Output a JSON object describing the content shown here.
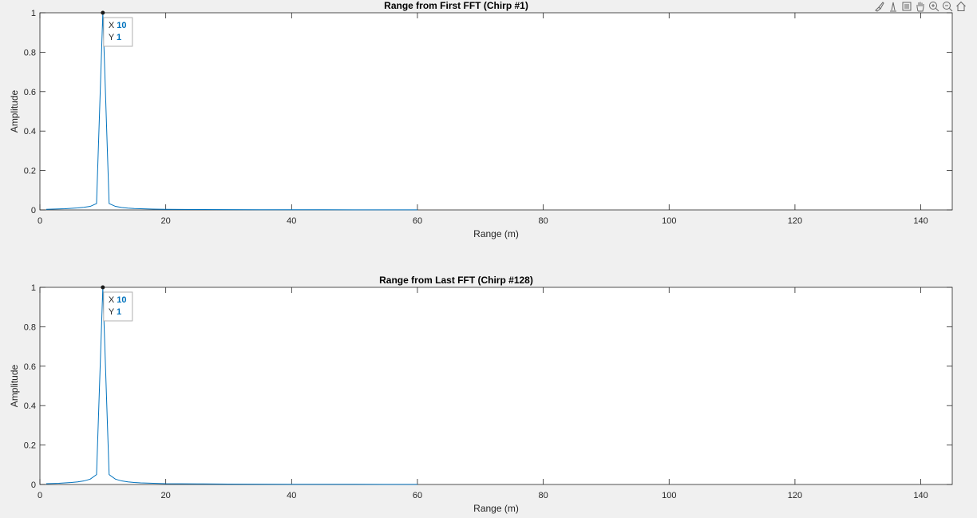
{
  "figure": {
    "toolbar": [
      {
        "name": "brush-icon"
      },
      {
        "name": "datatip-icon"
      },
      {
        "name": "restore-view-icon"
      },
      {
        "name": "pan-hand-icon"
      },
      {
        "name": "zoom-in-icon"
      },
      {
        "name": "zoom-out-icon"
      },
      {
        "name": "home-icon"
      }
    ],
    "colors": {
      "background": "#f0f0f0",
      "axes": "#ffffff",
      "line": "#0072BD",
      "axis_text": "#262626",
      "datatip_value": "#0072BD"
    }
  },
  "chart_data": [
    {
      "type": "line",
      "title": "Range from First FFT (Chirp #1)",
      "xlabel": "Range (m)",
      "ylabel": "Amplitude",
      "xlim": [
        0,
        145
      ],
      "ylim": [
        0,
        1
      ],
      "xticks": [
        0,
        20,
        40,
        60,
        80,
        100,
        120,
        140
      ],
      "yticks": [
        0,
        0.2,
        0.4,
        0.6,
        0.8,
        1
      ],
      "xtick_labels": [
        "0",
        "20",
        "40",
        "60",
        "80",
        "100",
        "120",
        "140"
      ],
      "ytick_labels": [
        "0",
        "0.2",
        "0.4",
        "0.6",
        "0.8",
        "1"
      ],
      "grid": false,
      "series": [
        {
          "x": [
            1,
            2,
            3,
            4,
            5,
            6,
            7,
            8,
            9,
            10,
            11,
            12,
            13,
            14,
            15,
            16,
            18,
            20,
            25,
            30,
            35,
            40,
            45,
            50,
            55,
            60
          ],
          "y": [
            0.003,
            0.004,
            0.005,
            0.006,
            0.008,
            0.01,
            0.013,
            0.018,
            0.032,
            1.0,
            0.032,
            0.018,
            0.012,
            0.009,
            0.007,
            0.006,
            0.004,
            0.003,
            0.002,
            0.0015,
            0.001,
            0.001,
            0.0008,
            0.0006,
            0.0005,
            0.0004
          ]
        }
      ],
      "datatip": {
        "x_label": "X",
        "y_label": "Y",
        "x": "10",
        "y": "1",
        "x_value": 10,
        "y_value": 1
      }
    },
    {
      "type": "line",
      "title": "Range from Last FFT (Chirp #128)",
      "xlabel": "Range (m)",
      "ylabel": "Amplitude",
      "xlim": [
        0,
        145
      ],
      "ylim": [
        0,
        1
      ],
      "xticks": [
        0,
        20,
        40,
        60,
        80,
        100,
        120,
        140
      ],
      "yticks": [
        0,
        0.2,
        0.4,
        0.6,
        0.8,
        1
      ],
      "xtick_labels": [
        "0",
        "20",
        "40",
        "60",
        "80",
        "100",
        "120",
        "140"
      ],
      "ytick_labels": [
        "0",
        "0.2",
        "0.4",
        "0.6",
        "0.8",
        "1"
      ],
      "grid": false,
      "series": [
        {
          "x": [
            1,
            2,
            3,
            4,
            5,
            6,
            7,
            8,
            9,
            10,
            11,
            12,
            13,
            14,
            15,
            16,
            18,
            20,
            25,
            30,
            35,
            40,
            45,
            50,
            55,
            60
          ],
          "y": [
            0.004,
            0.005,
            0.006,
            0.008,
            0.01,
            0.013,
            0.018,
            0.027,
            0.05,
            1.0,
            0.05,
            0.027,
            0.018,
            0.013,
            0.01,
            0.008,
            0.006,
            0.004,
            0.003,
            0.002,
            0.0015,
            0.0012,
            0.001,
            0.0008,
            0.0006,
            0.0005
          ]
        }
      ],
      "datatip": {
        "x_label": "X",
        "y_label": "Y",
        "x": "10",
        "y": "1",
        "x_value": 10,
        "y_value": 1
      }
    }
  ]
}
